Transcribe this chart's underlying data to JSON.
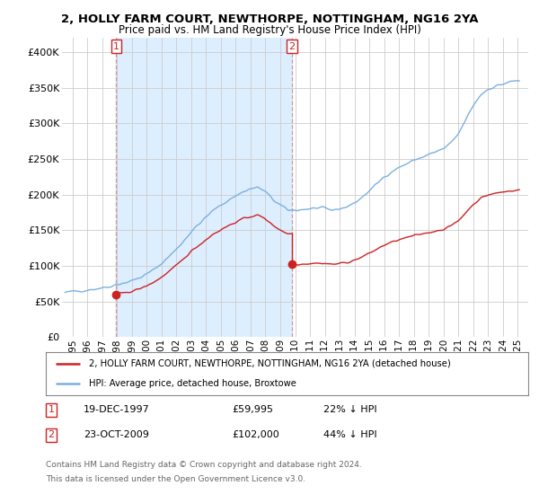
{
  "title": "2, HOLLY FARM COURT, NEWTHORPE, NOTTINGHAM, NG16 2YA",
  "subtitle": "Price paid vs. HM Land Registry's House Price Index (HPI)",
  "legend_red": "2, HOLLY FARM COURT, NEWTHORPE, NOTTINGHAM, NG16 2YA (detached house)",
  "legend_blue": "HPI: Average price, detached house, Broxtowe",
  "sale1_date": "19-DEC-1997",
  "sale1_price": 59995,
  "sale1_price_str": "£59,995",
  "sale1_pct": "22% ↓ HPI",
  "sale2_date": "23-OCT-2009",
  "sale2_price": 102000,
  "sale2_price_str": "£102,000",
  "sale2_pct": "44% ↓ HPI",
  "footnote1": "Contains HM Land Registry data © Crown copyright and database right 2024.",
  "footnote2": "This data is licensed under the Open Government Licence v3.0.",
  "red_color": "#cc2222",
  "blue_color": "#7bb0e0",
  "shade_color": "#ddeeff",
  "ylim": [
    0,
    420000
  ],
  "yticks": [
    0,
    50000,
    100000,
    150000,
    200000,
    250000,
    300000,
    350000,
    400000
  ],
  "xlim_left": 1994.3,
  "xlim_right": 2025.7
}
